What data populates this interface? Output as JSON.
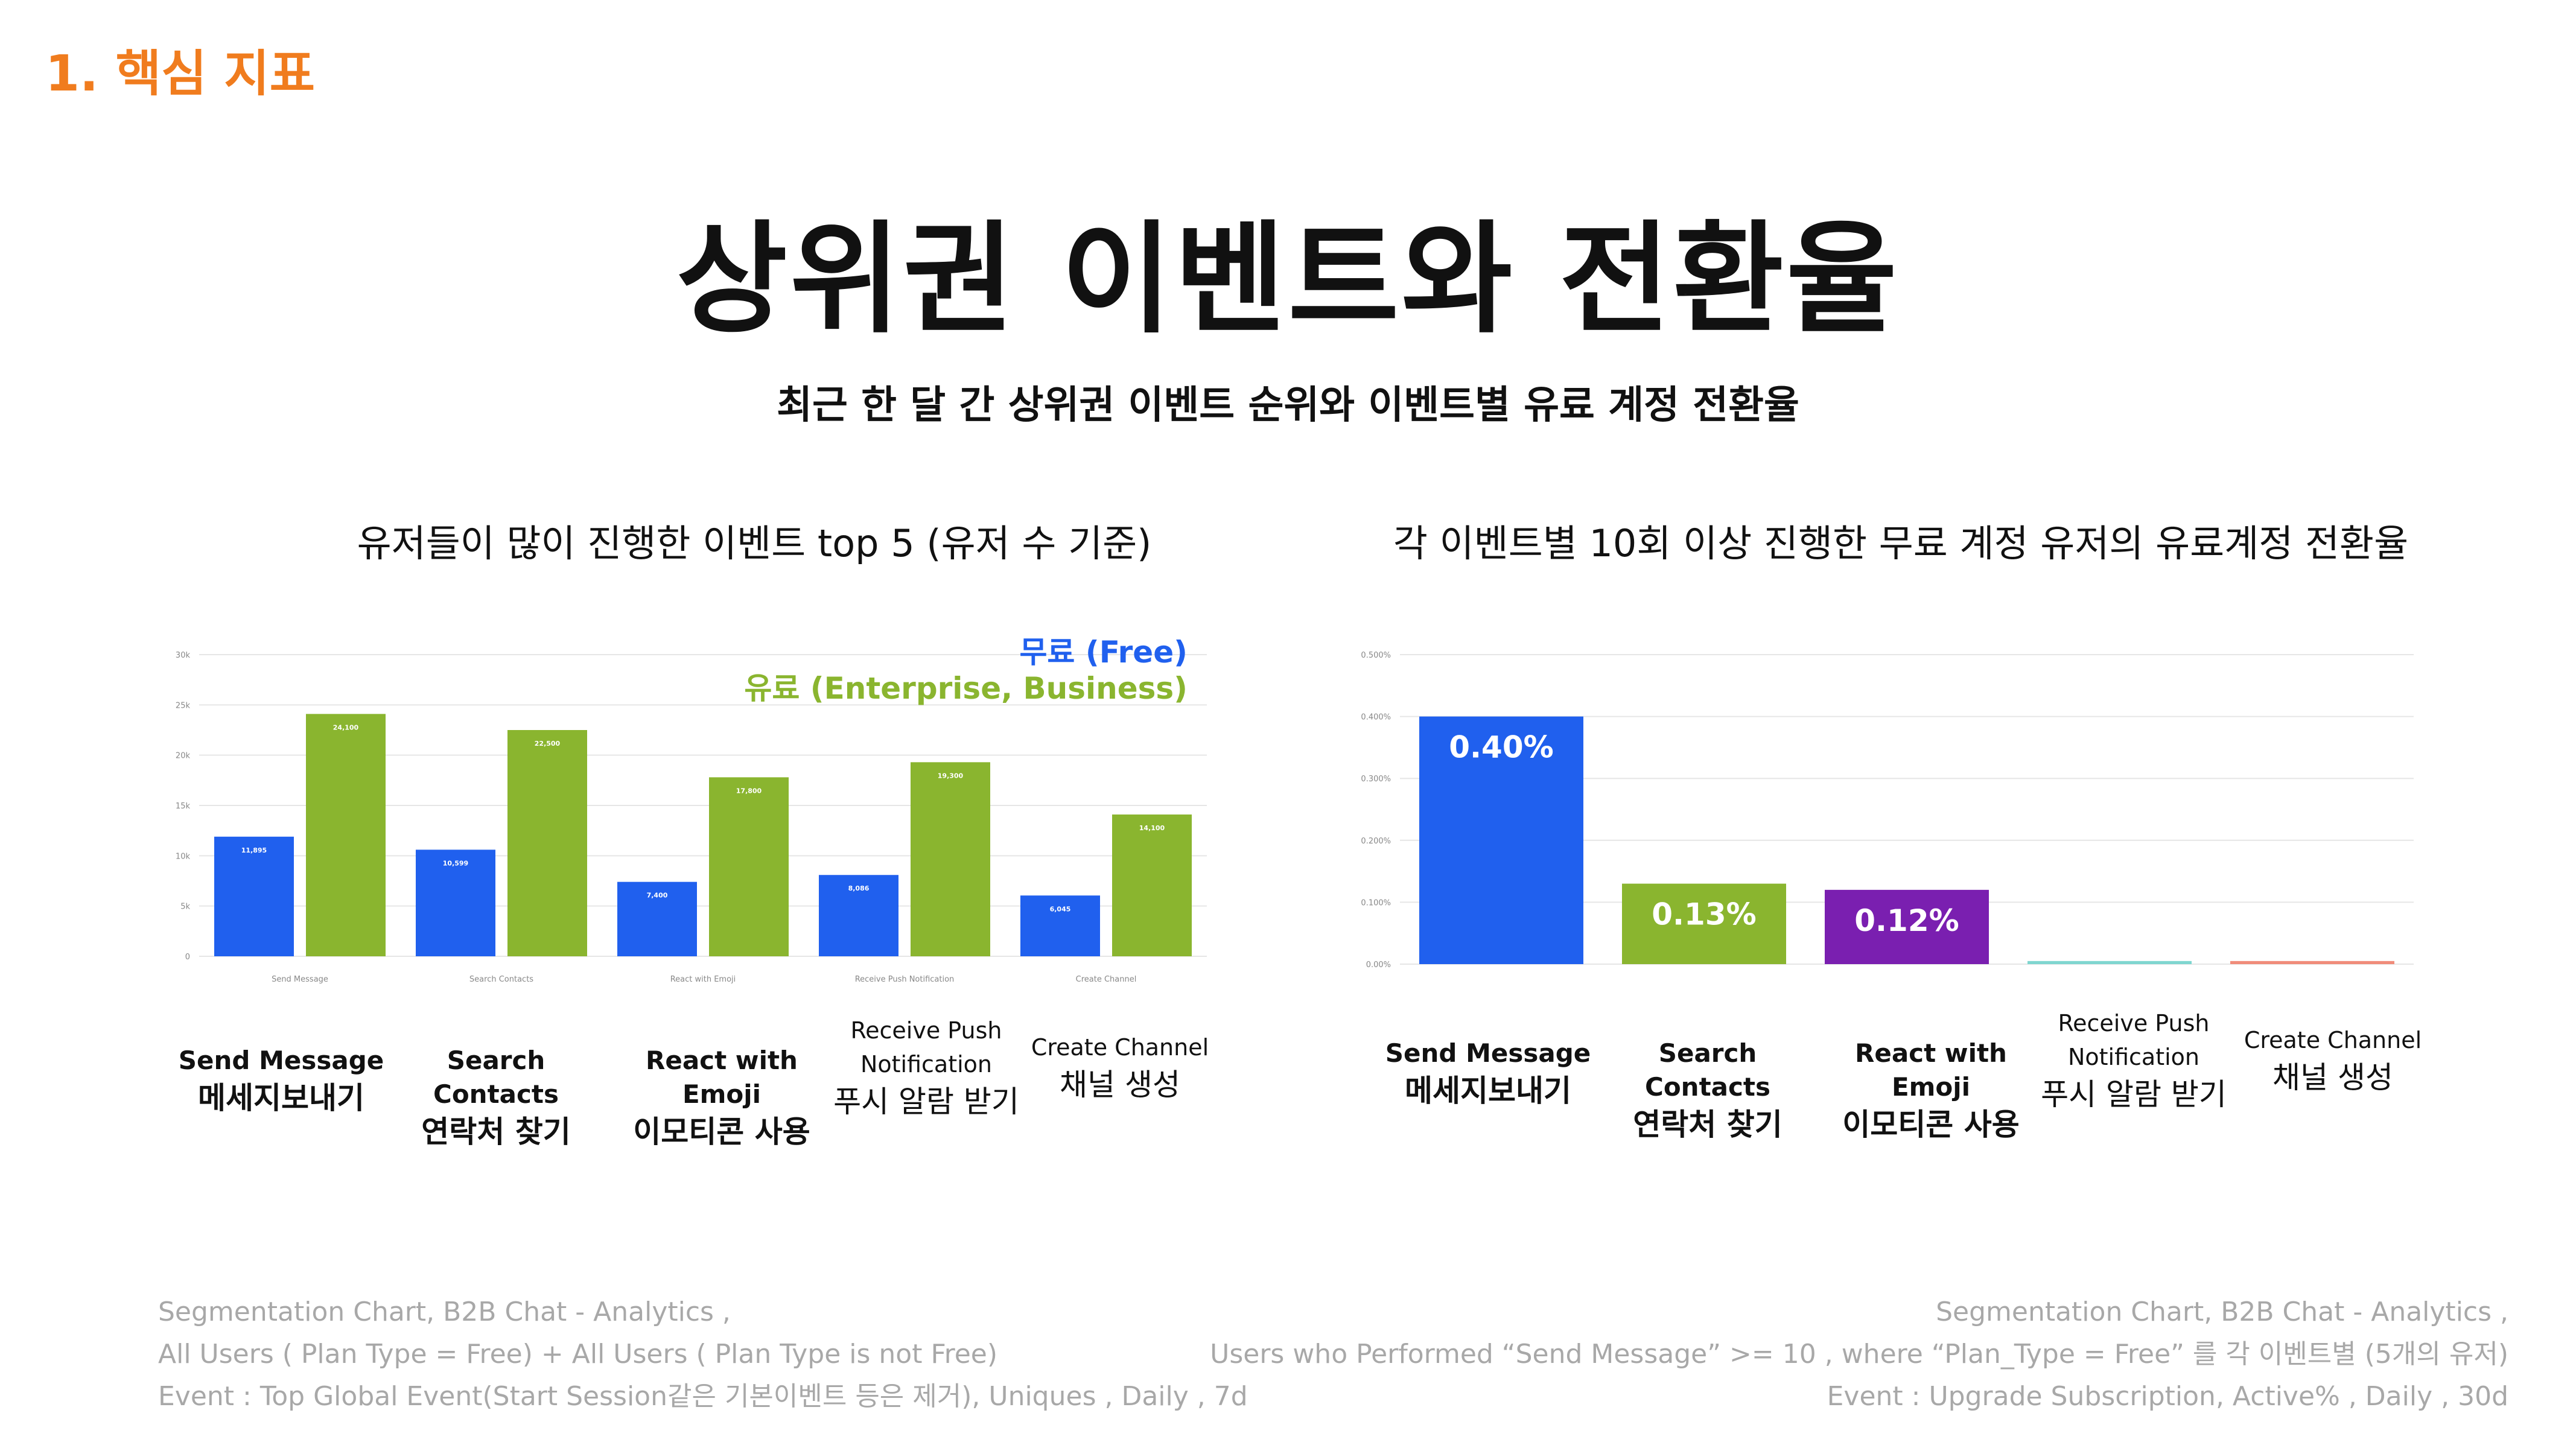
{
  "header": {
    "section_label": "1. 핵심 지표",
    "title": "상위권 이벤트와 전환율",
    "subtitle": "최근 한 달 간 상위권 이벤트 순위와 이벤트별 유료 계정 전환율"
  },
  "colors": {
    "free": "#2060ee",
    "paid": "#8ab52f",
    "purple": "#7a1fb0",
    "teal": "#7fd6d0",
    "salmon": "#f08c7a",
    "accent": "#f07c1e"
  },
  "categories": [
    {
      "en": "Send Message",
      "ko": "메세지보내기",
      "bold": true
    },
    {
      "en": "Search Contacts",
      "ko": "연락처 찾기",
      "bold": true
    },
    {
      "en": "React with Emoji",
      "ko": "이모티콘 사용",
      "bold": true
    },
    {
      "en": "Receive Push Notification",
      "en_line1": "Receive Push",
      "en_line2": "Notification",
      "ko": "푸시 알람 받기",
      "bold": false
    },
    {
      "en": "Create Channel",
      "ko": "채널 생성",
      "bold": false
    }
  ],
  "chart_data": [
    {
      "type": "bar",
      "title": "유저들이 많이 진행한 이벤트 top 5 (유저 수 기준)",
      "categories": [
        "Send Message",
        "Search Contacts",
        "React with Emoji",
        "Receive Push Notification",
        "Create Channel"
      ],
      "series": [
        {
          "name": "무료 (Free)",
          "color": "#2060ee",
          "values": [
            11895,
            10599,
            7400,
            8086,
            6045
          ]
        },
        {
          "name": "유료 (Enterprise, Business)",
          "color": "#8ab52f",
          "values": [
            24100,
            22500,
            17800,
            19300,
            14100
          ]
        }
      ],
      "ylim": [
        0,
        30000
      ],
      "yticks": [
        "0",
        "5k",
        "10k",
        "15k",
        "20k",
        "25k",
        "30k"
      ],
      "legend_position": "top-right",
      "grid": true
    },
    {
      "type": "bar",
      "title": "각 이벤트별 10회 이상 진행한 무료 계정 유저의 유료계정 전환율",
      "categories": [
        "Send Message",
        "Search Contacts",
        "React with Emoji",
        "Receive Push Notification",
        "Create Channel"
      ],
      "values": [
        0.4,
        0.13,
        0.12,
        0.005,
        0.005
      ],
      "value_labels": [
        "0.40%",
        "0.13%",
        "0.12%",
        "",
        ""
      ],
      "bar_colors": [
        "#2060ee",
        "#8ab52f",
        "#7a1fb0",
        "#7fd6d0",
        "#f08c7a"
      ],
      "ylim": [
        0,
        0.5
      ],
      "yticks": [
        "0.00%",
        "0.100%",
        "0.200%",
        "0.300%",
        "0.400%",
        "0.500%"
      ],
      "grid": true
    }
  ],
  "footnotes": {
    "left": [
      "Segmentation Chart, B2B Chat - Analytics ,",
      "All Users ( Plan Type = Free) + All Users ( Plan Type is not Free)",
      "Event :  Top Global Event(Start Session같은 기본이벤트 등은 제거), Uniques , Daily , 7d"
    ],
    "right": [
      "Segmentation Chart, B2B Chat - Analytics ,",
      "Users who Performed “Send Message” >= 10 , where “Plan_Type = Free” 를 각 이벤트별 (5개의 유저)",
      "Event :  Upgrade Subscription,  Active% , Daily , 30d"
    ]
  }
}
